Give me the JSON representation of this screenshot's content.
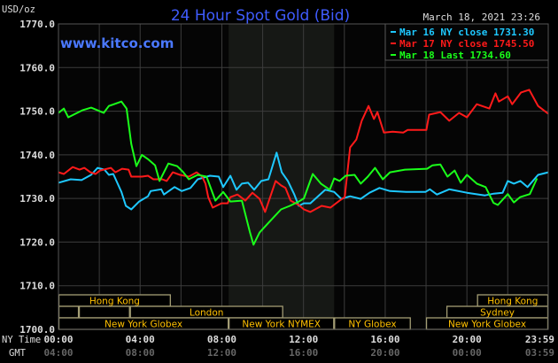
{
  "chart_data": {
    "type": "line",
    "title": "24 Hour Spot Gold (Bid)",
    "site": "www.kitco.com",
    "timestamp": "March 18, 2021 23:26",
    "ylabel": "USD/oz",
    "ylim": [
      1700,
      1770
    ],
    "yticks": [
      "1770.0",
      "1760.0",
      "1750.0",
      "1740.0",
      "1730.0",
      "1720.0",
      "1710.0",
      "1700.0"
    ],
    "xlim": [
      "00:00",
      "23:59"
    ],
    "x_axis_rows": [
      {
        "label": "NY Time",
        "ticks": [
          "00:00",
          "04:00",
          "08:00",
          "12:00",
          "16:00",
          "20:00",
          "23:59"
        ]
      },
      {
        "label": "GMT",
        "ticks": [
          "04:00",
          "08:00",
          "12:00",
          "16:00",
          "20:00",
          "00:00",
          "03:59"
        ]
      }
    ],
    "grid": true,
    "legend_position": "top-right",
    "shaded_period": [
      "08:20",
      "13:30"
    ],
    "series": [
      {
        "name": "Mar 16 NY close 1731.30",
        "color": "#1ec8ff",
        "points": [
          [
            "00:00",
            1733.6
          ],
          [
            "00:36",
            1734.4
          ],
          [
            "01:08",
            1734.2
          ],
          [
            "01:36",
            1735.4
          ],
          [
            "01:55",
            1737.0
          ],
          [
            "02:15",
            1736.6
          ],
          [
            "02:28",
            1735.4
          ],
          [
            "02:41",
            1735.6
          ],
          [
            "03:05",
            1731.5
          ],
          [
            "03:18",
            1728.3
          ],
          [
            "03:34",
            1727.5
          ],
          [
            "03:57",
            1729.3
          ],
          [
            "04:23",
            1730.5
          ],
          [
            "04:31",
            1731.7
          ],
          [
            "05:02",
            1732.1
          ],
          [
            "05:10",
            1730.9
          ],
          [
            "05:41",
            1732.6
          ],
          [
            "06:02",
            1731.7
          ],
          [
            "06:28",
            1732.4
          ],
          [
            "06:49",
            1734.4
          ],
          [
            "07:25",
            1735.2
          ],
          [
            "07:51",
            1735.0
          ],
          [
            "08:04",
            1732.6
          ],
          [
            "08:25",
            1735.2
          ],
          [
            "08:43",
            1732.0
          ],
          [
            "08:59",
            1733.4
          ],
          [
            "09:17",
            1733.6
          ],
          [
            "09:35",
            1732.0
          ],
          [
            "09:56",
            1734.0
          ],
          [
            "10:17",
            1734.4
          ],
          [
            "10:41",
            1740.5
          ],
          [
            "10:56",
            1736.0
          ],
          [
            "11:14",
            1734.0
          ],
          [
            "11:33",
            1730.9
          ],
          [
            "11:46",
            1728.3
          ],
          [
            "12:01",
            1728.9
          ],
          [
            "12:20",
            1728.9
          ],
          [
            "13:04",
            1732.0
          ],
          [
            "13:30",
            1731.5
          ],
          [
            "13:51",
            1729.9
          ],
          [
            "14:17",
            1730.5
          ],
          [
            "14:48",
            1729.9
          ],
          [
            "15:14",
            1731.3
          ],
          [
            "15:43",
            1732.4
          ],
          [
            "16:14",
            1731.7
          ],
          [
            "17:01",
            1731.5
          ],
          [
            "17:58",
            1731.5
          ],
          [
            "18:11",
            1732.1
          ],
          [
            "18:32",
            1730.9
          ],
          [
            "19:08",
            1732.1
          ],
          [
            "20:00",
            1731.3
          ],
          [
            "20:53",
            1730.7
          ],
          [
            "21:19",
            1731.1
          ],
          [
            "21:45",
            1731.3
          ],
          [
            "22:00",
            1734.0
          ],
          [
            "22:18",
            1733.4
          ],
          [
            "22:37",
            1734.0
          ],
          [
            "22:58",
            1732.6
          ],
          [
            "23:29",
            1735.4
          ],
          [
            "23:59",
            1736.0
          ]
        ]
      },
      {
        "name": "Mar 17 NY close 1745.50",
        "color": "#ff1a1a",
        "points": [
          [
            "00:00",
            1736.0
          ],
          [
            "00:16",
            1735.6
          ],
          [
            "00:42",
            1737.2
          ],
          [
            "01:02",
            1736.6
          ],
          [
            "01:16",
            1737.0
          ],
          [
            "01:34",
            1736.0
          ],
          [
            "01:49",
            1735.6
          ],
          [
            "02:02",
            1736.4
          ],
          [
            "02:34",
            1737.0
          ],
          [
            "02:47",
            1736.0
          ],
          [
            "03:07",
            1736.8
          ],
          [
            "03:26",
            1736.6
          ],
          [
            "03:34",
            1735.0
          ],
          [
            "04:05",
            1735.0
          ],
          [
            "04:23",
            1735.2
          ],
          [
            "04:39",
            1734.4
          ],
          [
            "05:05",
            1734.4
          ],
          [
            "05:18",
            1734.0
          ],
          [
            "05:36",
            1736.0
          ],
          [
            "05:57",
            1735.4
          ],
          [
            "06:23",
            1735.0
          ],
          [
            "06:46",
            1736.0
          ],
          [
            "07:02",
            1735.0
          ],
          [
            "07:12",
            1733.4
          ],
          [
            "07:20",
            1730.3
          ],
          [
            "07:33",
            1727.9
          ],
          [
            "07:59",
            1728.9
          ],
          [
            "08:17",
            1728.9
          ],
          [
            "08:25",
            1730.3
          ],
          [
            "08:46",
            1730.9
          ],
          [
            "09:09",
            1729.5
          ],
          [
            "09:30",
            1731.3
          ],
          [
            "09:51",
            1729.9
          ],
          [
            "10:07",
            1726.9
          ],
          [
            "10:22",
            1730.3
          ],
          [
            "10:38",
            1734.0
          ],
          [
            "10:54",
            1733.0
          ],
          [
            "11:07",
            1732.4
          ],
          [
            "11:22",
            1729.5
          ],
          [
            "11:46",
            1728.5
          ],
          [
            "12:01",
            1727.5
          ],
          [
            "12:20",
            1726.9
          ],
          [
            "12:53",
            1728.3
          ],
          [
            "13:19",
            1727.9
          ],
          [
            "13:46",
            1729.5
          ],
          [
            "14:01",
            1730.3
          ],
          [
            "14:17",
            1741.7
          ],
          [
            "14:35",
            1743.5
          ],
          [
            "14:51",
            1747.8
          ],
          [
            "15:11",
            1751.2
          ],
          [
            "15:27",
            1748.2
          ],
          [
            "15:37",
            1749.8
          ],
          [
            "15:56",
            1745.1
          ],
          [
            "16:22",
            1745.3
          ],
          [
            "16:53",
            1745.1
          ],
          [
            "17:06",
            1745.7
          ],
          [
            "18:01",
            1745.7
          ],
          [
            "18:09",
            1749.2
          ],
          [
            "18:42",
            1749.8
          ],
          [
            "19:08",
            1747.8
          ],
          [
            "19:37",
            1749.6
          ],
          [
            "20:00",
            1748.6
          ],
          [
            "20:29",
            1751.6
          ],
          [
            "21:06",
            1750.6
          ],
          [
            "21:24",
            1754.1
          ],
          [
            "21:34",
            1752.2
          ],
          [
            "22:00",
            1753.4
          ],
          [
            "22:13",
            1751.6
          ],
          [
            "22:39",
            1754.3
          ],
          [
            "23:03",
            1754.9
          ],
          [
            "23:29",
            1751.2
          ],
          [
            "23:59",
            1749.4
          ]
        ]
      },
      {
        "name": "Mar 18 Last 1734.60",
        "color": "#1aff1a",
        "points": [
          [
            "00:00",
            1749.6
          ],
          [
            "00:16",
            1750.6
          ],
          [
            "00:29",
            1748.6
          ],
          [
            "01:10",
            1750.2
          ],
          [
            "01:36",
            1750.8
          ],
          [
            "01:55",
            1750.2
          ],
          [
            "02:13",
            1749.6
          ],
          [
            "02:28",
            1751.2
          ],
          [
            "03:05",
            1752.2
          ],
          [
            "03:20",
            1750.6
          ],
          [
            "03:34",
            1742.5
          ],
          [
            "03:49",
            1737.4
          ],
          [
            "04:05",
            1740.0
          ],
          [
            "04:23",
            1739.0
          ],
          [
            "04:44",
            1737.6
          ],
          [
            "04:57",
            1734.0
          ],
          [
            "05:23",
            1738.0
          ],
          [
            "05:49",
            1737.4
          ],
          [
            "06:07",
            1736.0
          ],
          [
            "06:23",
            1734.4
          ],
          [
            "06:49",
            1735.4
          ],
          [
            "07:15",
            1735.0
          ],
          [
            "07:41",
            1729.5
          ],
          [
            "08:04",
            1731.5
          ],
          [
            "08:25",
            1729.3
          ],
          [
            "08:59",
            1729.5
          ],
          [
            "09:22",
            1722.4
          ],
          [
            "09:33",
            1719.4
          ],
          [
            "09:51",
            1722.2
          ],
          [
            "10:17",
            1724.4
          ],
          [
            "10:54",
            1727.5
          ],
          [
            "11:20",
            1728.3
          ],
          [
            "11:46",
            1729.3
          ],
          [
            "12:01",
            1730.0
          ],
          [
            "12:27",
            1735.6
          ],
          [
            "12:51",
            1733.4
          ],
          [
            "13:17",
            1732.0
          ],
          [
            "13:30",
            1734.6
          ],
          [
            "13:46",
            1734.0
          ],
          [
            "14:04",
            1735.2
          ],
          [
            "14:30",
            1735.4
          ],
          [
            "14:48",
            1733.4
          ],
          [
            "15:09",
            1735.0
          ],
          [
            "15:30",
            1737.0
          ],
          [
            "15:53",
            1734.4
          ],
          [
            "16:14",
            1736.0
          ],
          [
            "16:58",
            1736.6
          ],
          [
            "18:03",
            1736.8
          ],
          [
            "18:19",
            1737.6
          ],
          [
            "18:42",
            1737.8
          ],
          [
            "19:03",
            1735.0
          ],
          [
            "19:24",
            1736.4
          ],
          [
            "19:42",
            1733.6
          ],
          [
            "20:00",
            1735.4
          ],
          [
            "20:29",
            1733.4
          ],
          [
            "20:55",
            1732.6
          ],
          [
            "21:18",
            1729.0
          ],
          [
            "21:31",
            1728.5
          ],
          [
            "22:00",
            1731.0
          ],
          [
            "22:18",
            1729.1
          ],
          [
            "22:36",
            1730.3
          ],
          [
            "23:05",
            1731.0
          ],
          [
            "23:26",
            1734.6
          ]
        ]
      }
    ],
    "sessions": [
      {
        "label": "Hong Kong",
        "row": 0,
        "start": "00:00",
        "end": "05:30",
        "label_visible": true
      },
      {
        "label": "Hong Kong",
        "row": 0,
        "start": "20:30",
        "end": "23:59",
        "label_visible": true
      },
      {
        "label": "",
        "row": 1,
        "start": "00:00",
        "end": "01:00",
        "label_visible": false
      },
      {
        "label": "",
        "row": 1,
        "start": "01:00",
        "end": "03:30",
        "label_visible": false
      },
      {
        "label": "London",
        "row": 1,
        "start": "03:30",
        "end": "11:00",
        "label_visible": true
      },
      {
        "label": "Sydney",
        "row": 1,
        "start": "19:00",
        "end": "23:59",
        "label_visible": true
      },
      {
        "label": "New York Globex",
        "row": 2,
        "start": "00:00",
        "end": "08:20",
        "label_visible": true
      },
      {
        "label": "New York NYMEX",
        "row": 2,
        "start": "08:20",
        "end": "13:30",
        "label_visible": true
      },
      {
        "label": "NY Globex",
        "row": 2,
        "start": "13:30",
        "end": "17:15",
        "label_visible": true
      },
      {
        "label": "New York Globex",
        "row": 2,
        "start": "18:00",
        "end": "23:59",
        "label_visible": true
      }
    ],
    "colors": {
      "title": "#3f5cff",
      "site": "#4a78ff",
      "session_text": "#ffc000",
      "session_border": "#a39d74",
      "grid": "#3c3c3c"
    }
  }
}
